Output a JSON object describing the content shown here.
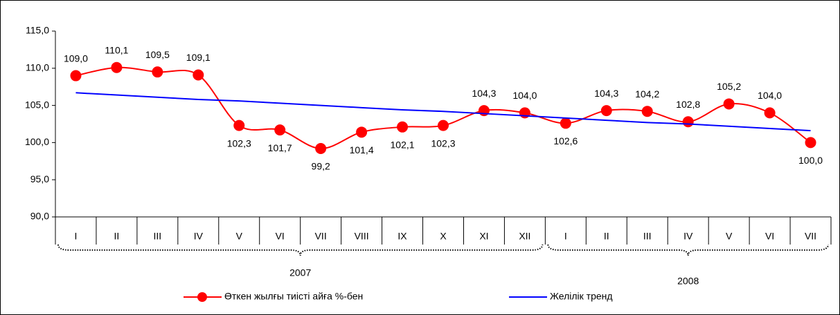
{
  "chart_data": {
    "type": "line",
    "categories": [
      "I",
      "II",
      "III",
      "IV",
      "V",
      "VI",
      "VII",
      "VIII",
      "IX",
      "X",
      "XI",
      "XII",
      "I",
      "II",
      "III",
      "IV",
      "V",
      "VI",
      "VII"
    ],
    "groups": [
      {
        "label": "2007",
        "count": 12
      },
      {
        "label": "2008",
        "count": 7
      }
    ],
    "series": [
      {
        "name": "Өткен жылғы тиісті айға %-бен",
        "color": "#ff0000",
        "smooth": true,
        "marker": true,
        "values": [
          109.0,
          110.1,
          109.5,
          109.1,
          102.3,
          101.7,
          99.2,
          101.4,
          102.1,
          102.3,
          104.3,
          104.0,
          102.6,
          104.3,
          104.2,
          102.8,
          105.2,
          104.0,
          100.0
        ],
        "value_labels": [
          "109,0",
          "110,1",
          "109,5",
          "109,1",
          "102,3",
          "101,7",
          "99,2",
          "101,4",
          "102,1",
          "102,3",
          "104,3",
          "104,0",
          "102,6",
          "104,3",
          "104,2",
          "102,8",
          "105,2",
          "104,0",
          "100,0"
        ]
      },
      {
        "name": "Желілік тренд",
        "color": "#0000ff",
        "smooth": false,
        "marker": false,
        "values": [
          106.7,
          106.4,
          106.1,
          105.8,
          105.6,
          105.3,
          105.0,
          104.7,
          104.4,
          104.2,
          103.9,
          103.6,
          103.3,
          103.0,
          102.7,
          102.5,
          102.2,
          101.9,
          101.6
        ]
      }
    ],
    "ylim": [
      90,
      115
    ],
    "yticks": [
      {
        "value": 90,
        "label": "90,0"
      },
      {
        "value": 95,
        "label": "95,0"
      },
      {
        "value": 100,
        "label": "100,0"
      },
      {
        "value": 105,
        "label": "105,0"
      },
      {
        "value": 110,
        "label": "110,0"
      },
      {
        "value": 115,
        "label": "115,0"
      }
    ],
    "legend": "bottom"
  }
}
